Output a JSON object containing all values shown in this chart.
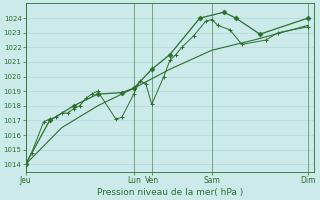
{
  "bg_color": "#cdeaea",
  "grid_color": "#b0d4d4",
  "line_color": "#2d6e2d",
  "title": "Pression niveau de la mer( hPa )",
  "ylim": [
    1013.5,
    1025.0
  ],
  "yticks": [
    1014,
    1015,
    1016,
    1017,
    1018,
    1019,
    1020,
    1021,
    1022,
    1023,
    1024
  ],
  "xlim": [
    0,
    24
  ],
  "xtick_positions": [
    0,
    9.0,
    10.5,
    15.5,
    23.5
  ],
  "xtick_labels": [
    "Jeu",
    "Lun",
    "Ven",
    "Sam",
    "Dim"
  ],
  "vline_positions": [
    0,
    9.0,
    10.5,
    15.5,
    23.5
  ],
  "series1_x": [
    0,
    0.5,
    1.5,
    2.0,
    2.5,
    3.0,
    3.5,
    4.0,
    4.5,
    5.0,
    5.5,
    6.0,
    7.5,
    8.0,
    9.0,
    9.5,
    10.0,
    10.5,
    11.5,
    12.0,
    12.5,
    13.0,
    14.0,
    15.0,
    15.5,
    16.0,
    17.0,
    18.0,
    20.0,
    21.0,
    23.5
  ],
  "series1_y": [
    1014.0,
    1014.8,
    1016.9,
    1017.1,
    1017.2,
    1017.5,
    1017.5,
    1017.8,
    1018.0,
    1018.5,
    1018.8,
    1019.0,
    1017.1,
    1017.2,
    1018.8,
    1019.7,
    1019.5,
    1018.1,
    1020.0,
    1021.1,
    1021.5,
    1022.0,
    1022.8,
    1023.8,
    1023.9,
    1023.5,
    1023.2,
    1022.2,
    1022.5,
    1023.0,
    1023.4
  ],
  "series2_x": [
    0,
    2.0,
    4.0,
    6.0,
    8.0,
    9.0,
    10.5,
    12.0,
    14.5,
    16.5,
    17.5,
    19.5,
    23.5
  ],
  "series2_y": [
    1014.0,
    1017.0,
    1018.0,
    1018.8,
    1018.9,
    1019.2,
    1020.5,
    1021.5,
    1024.0,
    1024.4,
    1024.0,
    1022.9,
    1024.0
  ],
  "series3_x": [
    0,
    3.0,
    6.0,
    9.0,
    12.0,
    15.5,
    19.0,
    23.5
  ],
  "series3_y": [
    1014.0,
    1016.5,
    1018.0,
    1019.2,
    1020.5,
    1021.8,
    1022.5,
    1023.5
  ]
}
